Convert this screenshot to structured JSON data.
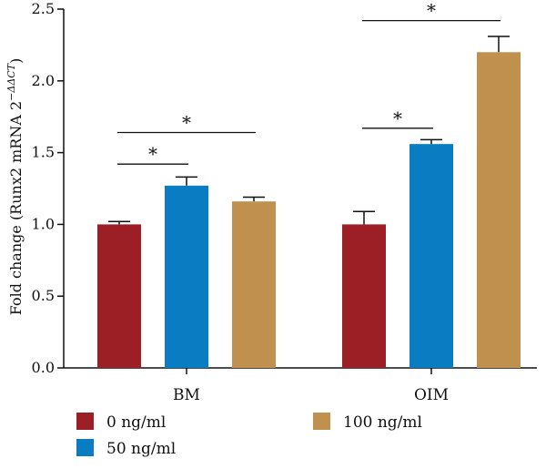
{
  "chart_data": {
    "type": "bar",
    "categories": [
      "BM",
      "OIM"
    ],
    "ylabel": "Fold change (Runx2 mRNA 2",
    "ylabel_sup": "−ΔΔCT",
    "ylabel_close": ")",
    "ylim": [
      0,
      2.5
    ],
    "yticks": [
      "0.0",
      "0.5",
      "1.0",
      "1.5",
      "2.0",
      "2.5"
    ],
    "series": [
      {
        "name": "0 ng/ml",
        "color": "#9b1f25",
        "values": [
          1.0,
          1.0
        ],
        "errors": [
          0.02,
          0.09
        ]
      },
      {
        "name": "50 ng/ml",
        "color": "#0a7dc2",
        "values": [
          1.27,
          1.56
        ],
        "errors": [
          0.06,
          0.03
        ]
      },
      {
        "name": "100 ng/ml",
        "color": "#c0914e",
        "values": [
          1.16,
          2.2
        ],
        "errors": [
          0.03,
          0.11
        ]
      }
    ],
    "significance": [
      {
        "group": 0,
        "from": 0,
        "to": 1,
        "y": 1.42,
        "label": "*"
      },
      {
        "group": 0,
        "from": 0,
        "to": 2,
        "y": 1.64,
        "label": "*"
      },
      {
        "group": 1,
        "from": 0,
        "to": 1,
        "y": 1.67,
        "label": "*"
      },
      {
        "group": 1,
        "from": 0,
        "to": 2,
        "y": 2.42,
        "label": "*"
      }
    ],
    "legend_position": "bottom"
  }
}
